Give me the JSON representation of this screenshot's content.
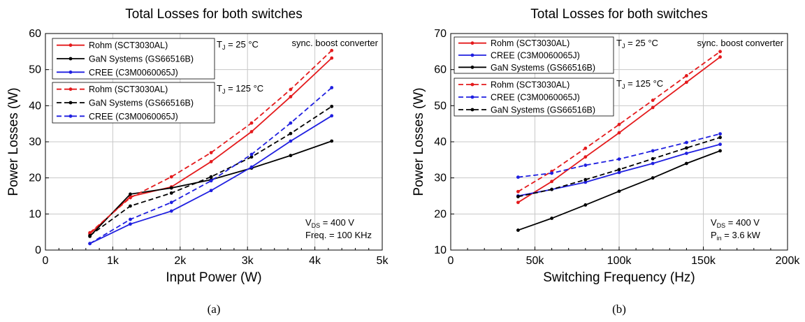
{
  "chart_data": [
    {
      "type": "line",
      "title": "Total Losses for both switches",
      "xlabel": "Input Power (W)",
      "ylabel": "Power Losses (W)",
      "xlim": [
        0,
        5000
      ],
      "ylim": [
        0,
        60
      ],
      "xticks": [
        0,
        1000,
        2000,
        3000,
        4000,
        5000
      ],
      "xtick_labels": [
        "0",
        "1k",
        "2k",
        "3k",
        "4k",
        "5k"
      ],
      "yticks": [
        0,
        10,
        20,
        30,
        40,
        50,
        60
      ],
      "ytick_labels": [
        "0",
        "10",
        "20",
        "30",
        "40",
        "50",
        "60"
      ],
      "grid": true,
      "caption": "(a)",
      "annotations": {
        "top_right": "sync. boost converter",
        "bottom_right": [
          {
            "base": "V",
            "sub": "DS",
            "rest": " = 400 V"
          },
          {
            "base": "Freq. = 100 KHz",
            "sub": "",
            "rest": ""
          }
        ]
      },
      "legend_groups": [
        {
          "label": {
            "base": "T",
            "sub": "J",
            "rest": " = 25 °C"
          },
          "series": [
            0,
            1,
            2
          ]
        },
        {
          "label": {
            "base": "T",
            "sub": "J",
            "rest": " = 125 °C"
          },
          "series": [
            3,
            4,
            5
          ]
        }
      ],
      "series": [
        {
          "name": "Rohm (SCT3030AL)",
          "color": "#e41a1c",
          "dash": false,
          "x": [
            660,
            1260,
            1870,
            2460,
            3060,
            3640,
            4250
          ],
          "y": [
            4.5,
            14.8,
            17.5,
            24.5,
            32.8,
            42.5,
            53.2
          ]
        },
        {
          "name": "GaN Systems (GS66516B)",
          "color": "#000000",
          "dash": false,
          "x": [
            660,
            1260,
            1870,
            2460,
            3060,
            3640,
            4250
          ],
          "y": [
            3.8,
            15.5,
            17.2,
            19.5,
            22.7,
            26.2,
            30.2
          ]
        },
        {
          "name": "CREE (C3M0060065J)",
          "color": "#1f1fe0",
          "dash": false,
          "x": [
            660,
            1260,
            1870,
            2460,
            3060,
            3640,
            4250
          ],
          "y": [
            1.8,
            7.2,
            10.8,
            16.5,
            23.0,
            30.2,
            37.2
          ]
        },
        {
          "name": "Rohm (SCT3030AL)",
          "color": "#e41a1c",
          "dash": true,
          "x": [
            660,
            1260,
            1870,
            2460,
            3060,
            3640,
            4250
          ],
          "y": [
            4.8,
            14.5,
            20.3,
            27.0,
            35.2,
            44.5,
            55.3
          ]
        },
        {
          "name": "GaN Systems (GS66516B)",
          "color": "#000000",
          "dash": true,
          "x": [
            660,
            1260,
            1870,
            2460,
            3060,
            3640,
            4250
          ],
          "y": [
            4.0,
            12.2,
            15.8,
            20.3,
            25.8,
            32.3,
            39.8
          ]
        },
        {
          "name": "CREE (C3M0060065J)",
          "color": "#1f1fe0",
          "dash": true,
          "x": [
            660,
            1260,
            1870,
            2460,
            3060,
            3640,
            4250
          ],
          "y": [
            1.8,
            8.5,
            13.2,
            19.2,
            26.5,
            35.2,
            45.0
          ]
        }
      ]
    },
    {
      "type": "line",
      "title": "Total Losses for both switches",
      "xlabel": "Switching Frequency (Hz)",
      "ylabel": "Power Losses (W)",
      "xlim": [
        0,
        200000
      ],
      "ylim": [
        10,
        70
      ],
      "xticks": [
        0,
        50000,
        100000,
        150000,
        200000
      ],
      "xtick_labels": [
        "0",
        "50k",
        "100k",
        "150k",
        "200k"
      ],
      "yticks": [
        10,
        20,
        30,
        40,
        50,
        60,
        70
      ],
      "ytick_labels": [
        "10",
        "20",
        "30",
        "40",
        "50",
        "60",
        "70"
      ],
      "grid": true,
      "caption": "(b)",
      "annotations": {
        "top_right": "sync. boost converter",
        "bottom_right": [
          {
            "base": "V",
            "sub": "DS",
            "rest": " = 400 V"
          },
          {
            "base": "P",
            "sub": "in",
            "rest": " = 3.6 kW"
          }
        ]
      },
      "legend_groups": [
        {
          "label": {
            "base": "T",
            "sub": "J",
            "rest": " = 25 °C"
          },
          "series": [
            0,
            1,
            2
          ]
        },
        {
          "label": {
            "base": "T",
            "sub": "J",
            "rest": " = 125 °C"
          },
          "series": [
            3,
            4,
            5
          ]
        }
      ],
      "series": [
        {
          "name": "Rohm (SCT3030AL)",
          "color": "#e41a1c",
          "dash": false,
          "x": [
            40000,
            60000,
            80000,
            100000,
            120000,
            140000,
            160000
          ],
          "y": [
            23.2,
            29.0,
            35.8,
            42.5,
            49.5,
            56.5,
            63.5
          ]
        },
        {
          "name": "CREE (C3M0060065J)",
          "color": "#1f1fe0",
          "dash": false,
          "x": [
            40000,
            60000,
            80000,
            100000,
            120000,
            140000,
            160000
          ],
          "y": [
            25.0,
            26.8,
            28.8,
            31.5,
            34.0,
            36.8,
            39.3
          ]
        },
        {
          "name": "GaN Systems (GS66516B)",
          "color": "#000000",
          "dash": false,
          "x": [
            40000,
            60000,
            80000,
            100000,
            120000,
            140000,
            160000
          ],
          "y": [
            15.5,
            18.8,
            22.5,
            26.3,
            30.0,
            34.0,
            37.5
          ]
        },
        {
          "name": "Rohm (SCT3030AL)",
          "color": "#e41a1c",
          "dash": true,
          "x": [
            40000,
            60000,
            80000,
            100000,
            120000,
            140000,
            160000
          ],
          "y": [
            26.2,
            31.8,
            38.2,
            44.8,
            51.5,
            58.3,
            65.0
          ]
        },
        {
          "name": "CREE (C3M0060065J)",
          "color": "#1f1fe0",
          "dash": true,
          "x": [
            40000,
            60000,
            80000,
            100000,
            120000,
            140000,
            160000
          ],
          "y": [
            30.2,
            31.3,
            33.5,
            35.2,
            37.5,
            39.8,
            42.2
          ]
        },
        {
          "name": "GaN Systems (GS66516B)",
          "color": "#000000",
          "dash": true,
          "x": [
            40000,
            60000,
            80000,
            100000,
            120000,
            140000,
            160000
          ],
          "y": [
            24.8,
            26.8,
            29.5,
            32.3,
            35.3,
            38.3,
            41.2
          ]
        }
      ]
    }
  ]
}
